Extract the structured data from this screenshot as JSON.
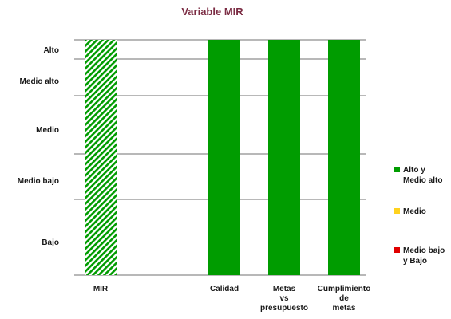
{
  "chart_data": {
    "type": "bar",
    "title": "Variable  MIR",
    "y_levels": [
      "Bajo",
      "Medio bajo",
      "Medio",
      "Medio alto",
      "Alto"
    ],
    "categories": [
      {
        "lines": [
          "MIR"
        ]
      },
      {
        "lines": [
          "Calidad"
        ]
      },
      {
        "lines": [
          "Metas",
          "vs",
          "presupuesto"
        ]
      },
      {
        "lines": [
          "Cumplimiento",
          "de",
          "metas"
        ]
      }
    ],
    "values": [
      "Alto",
      "Alto",
      "Alto",
      "Alto"
    ],
    "bar_styles": [
      "hatched",
      "solid",
      "solid",
      "solid"
    ],
    "legend": [
      {
        "lines": [
          "Alto y",
          "Medio alto"
        ],
        "color": "#009c00"
      },
      {
        "lines": [
          "Medio"
        ],
        "color": "#ffd21e"
      },
      {
        "lines": [
          "Medio bajo",
          "y Bajo"
        ],
        "color": "#e00000"
      }
    ],
    "bar_color": "#009c00",
    "grid": true,
    "legend_position": "right"
  }
}
